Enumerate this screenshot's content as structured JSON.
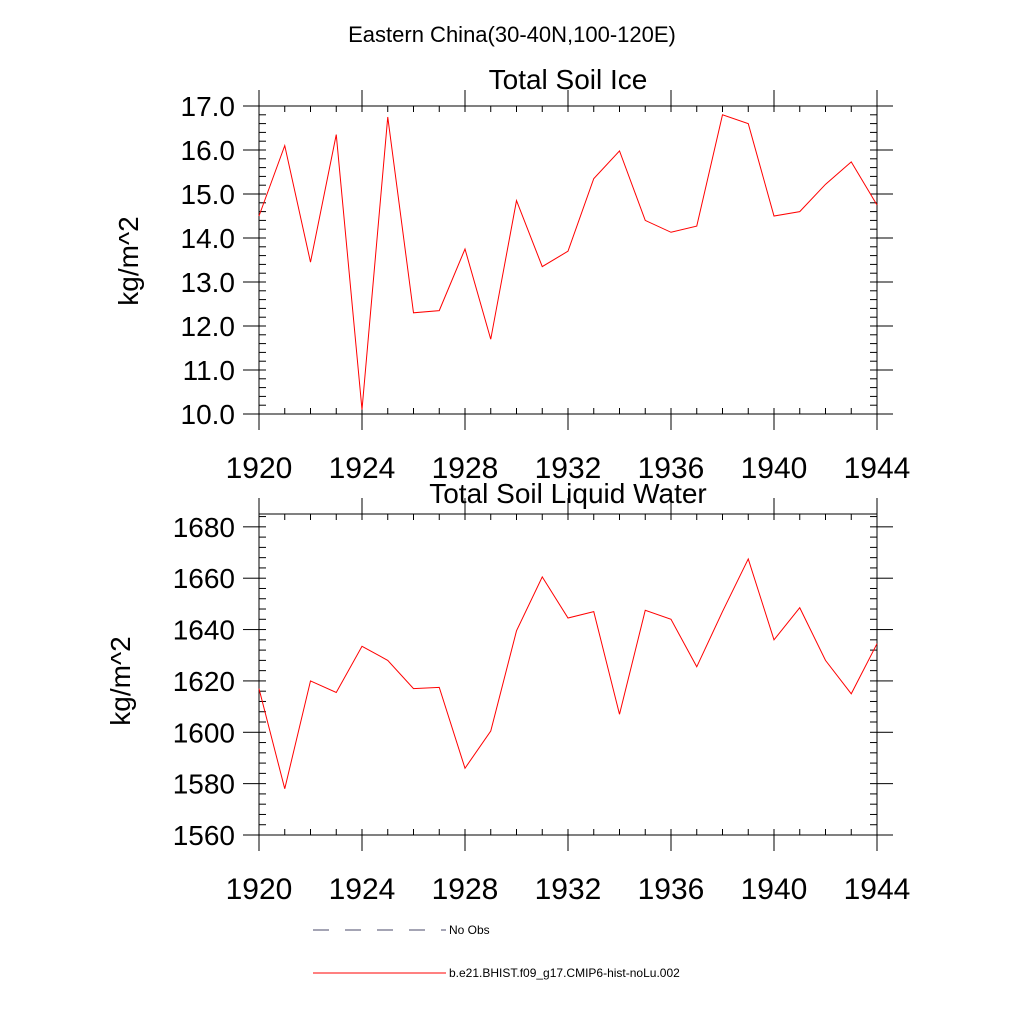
{
  "figure_title": "Eastern China(30-40N,100-120E)",
  "colors": {
    "series": "#ff0000",
    "axes": "#000000",
    "legend_dash": "#4a4a6a"
  },
  "legend": {
    "items": [
      {
        "label": "No Obs",
        "style": "dashed"
      },
      {
        "label": "b.e21.BHIST.f09_g17.CMIP6-hist-noLu.002",
        "style": "solid"
      }
    ]
  },
  "chart_data": [
    {
      "type": "line",
      "title": "Total Soil Ice",
      "ylabel": "kg/m^2",
      "xlabel": "",
      "xlim": [
        1920,
        1944
      ],
      "ylim": [
        10.0,
        17.0
      ],
      "xticks": [
        1920,
        1924,
        1928,
        1932,
        1936,
        1940,
        1944
      ],
      "xtick_labels": [
        "1920",
        "1924",
        "1928",
        "1932",
        "1936",
        "1940",
        "1944"
      ],
      "yticks": [
        10,
        11,
        12,
        13,
        14,
        15,
        16,
        17
      ],
      "ytick_labels": [
        "10.0",
        "11.0",
        "12.0",
        "13.0",
        "14.0",
        "15.0",
        "16.0",
        "17.0"
      ],
      "x": [
        1920,
        1921,
        1922,
        1923,
        1924,
        1925,
        1926,
        1927,
        1928,
        1929,
        1930,
        1931,
        1932,
        1933,
        1934,
        1935,
        1936,
        1937,
        1938,
        1939,
        1940,
        1941,
        1942,
        1943,
        1944
      ],
      "series": [
        {
          "values": [
            14.5,
            16.1,
            13.45,
            16.35,
            10.1,
            16.75,
            12.3,
            12.35,
            13.75,
            11.7,
            14.85,
            13.35,
            13.7,
            15.35,
            15.98,
            14.4,
            14.13,
            14.27,
            16.8,
            16.6,
            14.5,
            14.6,
            15.22,
            15.73,
            14.75
          ]
        }
      ]
    },
    {
      "type": "line",
      "title": "Total Soil Liquid Water",
      "ylabel": "kg/m^2",
      "xlabel": "",
      "xlim": [
        1920,
        1944
      ],
      "ylim": [
        1560,
        1685
      ],
      "xticks": [
        1920,
        1924,
        1928,
        1932,
        1936,
        1940,
        1944
      ],
      "xtick_labels": [
        "1920",
        "1924",
        "1928",
        "1932",
        "1936",
        "1940",
        "1944"
      ],
      "yticks": [
        1560,
        1580,
        1600,
        1620,
        1640,
        1660,
        1680
      ],
      "ytick_labels": [
        "1560",
        "1580",
        "1600",
        "1620",
        "1640",
        "1660",
        "1680"
      ],
      "x": [
        1920,
        1921,
        1922,
        1923,
        1924,
        1925,
        1926,
        1927,
        1928,
        1929,
        1930,
        1931,
        1932,
        1933,
        1934,
        1935,
        1936,
        1937,
        1938,
        1939,
        1940,
        1941,
        1942,
        1943,
        1944
      ],
      "series": [
        {
          "values": [
            1617,
            1578,
            1620,
            1615.5,
            1633.5,
            1628,
            1617,
            1617.5,
            1586,
            1600.5,
            1639.5,
            1660.5,
            1644.5,
            1647,
            1607,
            1647.5,
            1644,
            1625.5,
            1647,
            1667.5,
            1636,
            1648.5,
            1628,
            1615,
            1634.5
          ]
        }
      ]
    }
  ]
}
